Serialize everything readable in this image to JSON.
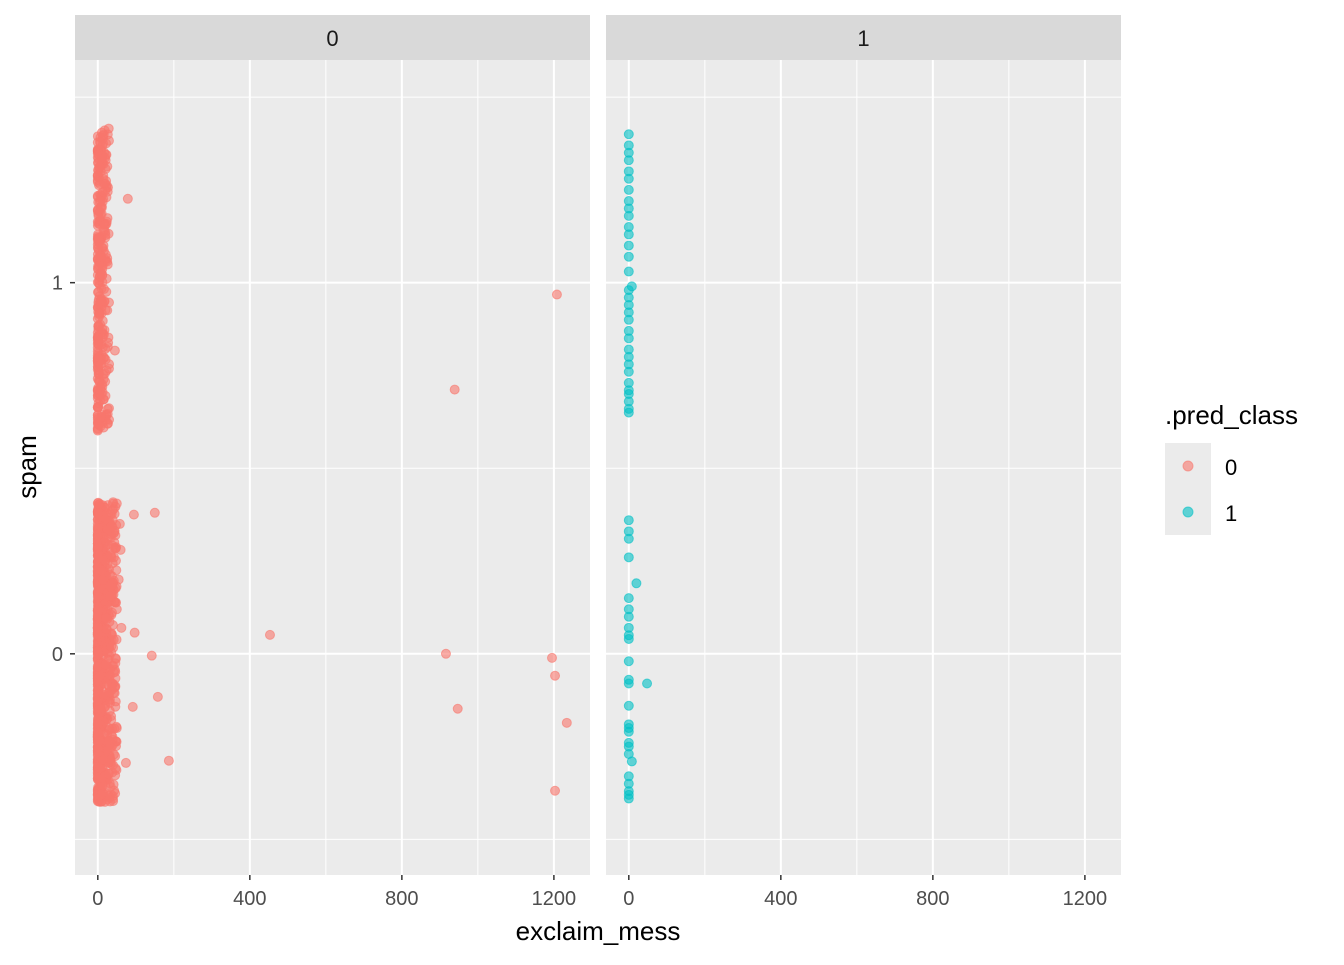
{
  "chart_data": {
    "type": "scatter",
    "xlabel": "exclaim_mess",
    "ylabel": "spam",
    "xlim": [
      -60,
      1295
    ],
    "ylim": [
      -0.596,
      1.6
    ],
    "x_ticks": [
      0,
      400,
      800,
      1200
    ],
    "x_tick_labels": [
      "0",
      "400",
      "800",
      "1200"
    ],
    "y_ticks": [
      0,
      1
    ],
    "y_tick_labels": [
      "0",
      "1"
    ],
    "grid": true,
    "legend": {
      "title": ".pred_class",
      "entries": [
        "0",
        "1"
      ],
      "placement": "right"
    },
    "colors": {
      "0": "#F8766D",
      "1": "#00BFC4"
    },
    "facets": [
      {
        "label": "0",
        "color_class": "0",
        "jitter_bands": [
          {
            "x_range": [
              0,
              30
            ],
            "y_range": [
              0.6,
              1.42
            ],
            "n": 320
          },
          {
            "x_range": [
              0,
              50
            ],
            "y_range": [
              -0.4,
              0.41
            ],
            "n": 900
          }
        ],
        "points": [
          [
            79,
            1.226
          ],
          [
            45,
            0.817
          ],
          [
            1208,
            0.968
          ],
          [
            939,
            0.712
          ],
          [
            26,
            0.62
          ],
          [
            150,
            0.38
          ],
          [
            95,
            0.375
          ],
          [
            58,
            0.35
          ],
          [
            453,
            0.051
          ],
          [
            97,
            0.057
          ],
          [
            142,
            -0.005
          ],
          [
            916,
            0
          ],
          [
            1195,
            -0.011
          ],
          [
            1203,
            -0.059
          ],
          [
            158,
            -0.116
          ],
          [
            92,
            -0.143
          ],
          [
            947,
            -0.148
          ],
          [
            1234,
            -0.186
          ],
          [
            187,
            -0.288
          ],
          [
            74,
            -0.294
          ],
          [
            1203,
            -0.369
          ],
          [
            15,
            1.1
          ],
          [
            18,
            0.95
          ],
          [
            12,
            0.72
          ],
          [
            60,
            0.28
          ],
          [
            55,
            0.2
          ],
          [
            50,
            0.12
          ],
          [
            62,
            0.07
          ],
          [
            50,
            -0.2
          ],
          [
            40,
            -0.3
          ]
        ]
      },
      {
        "label": "1",
        "color_class": "1",
        "jitter_bands": [],
        "points": [
          [
            0,
            1.4
          ],
          [
            0,
            1.37
          ],
          [
            0,
            1.35
          ],
          [
            0,
            1.33
          ],
          [
            0,
            1.3
          ],
          [
            0,
            1.28
          ],
          [
            0,
            1.25
          ],
          [
            0,
            1.22
          ],
          [
            0,
            1.2
          ],
          [
            0,
            1.18
          ],
          [
            0,
            1.15
          ],
          [
            0,
            1.13
          ],
          [
            0,
            1.1
          ],
          [
            0,
            1.07
          ],
          [
            0,
            1.03
          ],
          [
            8,
            0.99
          ],
          [
            0,
            0.98
          ],
          [
            0,
            0.96
          ],
          [
            0,
            0.94
          ],
          [
            0,
            0.92
          ],
          [
            0,
            0.9
          ],
          [
            0,
            0.87
          ],
          [
            0,
            0.85
          ],
          [
            0,
            0.82
          ],
          [
            0,
            0.8
          ],
          [
            0,
            0.78
          ],
          [
            0,
            0.76
          ],
          [
            0,
            0.73
          ],
          [
            0,
            0.71
          ],
          [
            0,
            0.7
          ],
          [
            0,
            0.68
          ],
          [
            0,
            0.66
          ],
          [
            0,
            0.65
          ],
          [
            0,
            0.36
          ],
          [
            0,
            0.33
          ],
          [
            0,
            0.31
          ],
          [
            0,
            0.26
          ],
          [
            20,
            0.19
          ],
          [
            0,
            0.15
          ],
          [
            0,
            0.12
          ],
          [
            0,
            0.1
          ],
          [
            0,
            0.07
          ],
          [
            0,
            0.05
          ],
          [
            0,
            0.04
          ],
          [
            0,
            -0.02
          ],
          [
            0,
            -0.07
          ],
          [
            0,
            -0.08
          ],
          [
            48,
            -0.08
          ],
          [
            0,
            -0.14
          ],
          [
            0,
            -0.19
          ],
          [
            0,
            -0.2
          ],
          [
            0,
            -0.21
          ],
          [
            0,
            -0.24
          ],
          [
            0,
            -0.25
          ],
          [
            0,
            -0.27
          ],
          [
            8,
            -0.29
          ],
          [
            0,
            -0.33
          ],
          [
            0,
            -0.35
          ],
          [
            0,
            -0.37
          ],
          [
            0,
            -0.38
          ],
          [
            0,
            -0.39
          ]
        ]
      }
    ]
  }
}
